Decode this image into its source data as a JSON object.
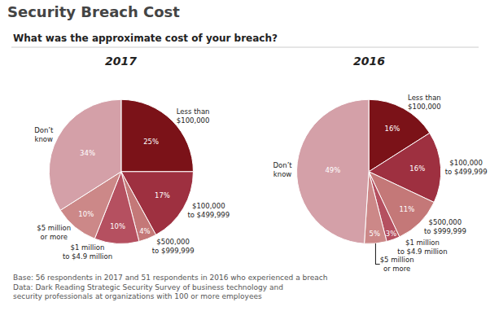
{
  "title": "Security Breach Cost",
  "subtitle": "What was the approximate cost of your breach?",
  "footer": "Base: 56 respondents in 2017 and 51 respondents in 2016 who experienced a breach\nData: Dark Reading Strategic Security Survey of business technology and\nsecurity professionals at organizations with 100 or more employees",
  "chart_data": [
    {
      "type": "pie",
      "title": "2017",
      "categories": [
        "Less than\n$100,000",
        "$100,000\nto $499,999",
        "$500,000\nto $999,999",
        "$1 million\nto $4.9 million",
        "$5 million\nor more",
        "Don’t\nknow"
      ],
      "values": [
        25,
        17,
        4,
        10,
        10,
        34
      ],
      "value_labels": [
        "25%",
        "17%",
        "4%",
        "10%",
        "10%",
        "34%"
      ],
      "colors": [
        "#7b1218",
        "#9e3040",
        "#c47878",
        "#b55060",
        "#cc8888",
        "#d4a0a8"
      ],
      "data_labels": true
    },
    {
      "type": "pie",
      "title": "2016",
      "categories": [
        "Less than\n$100,000",
        "$100,000\nto $499,999",
        "$500,000\nto $999,999",
        "$1 million\nto $4.9 million",
        "$5 million\nor more",
        "Don’t\nknow"
      ],
      "values": [
        16,
        16,
        11,
        3,
        5,
        49
      ],
      "value_labels": [
        "16%",
        "16%",
        "11%",
        "3%",
        "5%",
        "49%"
      ],
      "colors": [
        "#7b1218",
        "#9e3040",
        "#c47878",
        "#b55060",
        "#cc8888",
        "#d4a0a8"
      ],
      "data_labels": true
    }
  ]
}
